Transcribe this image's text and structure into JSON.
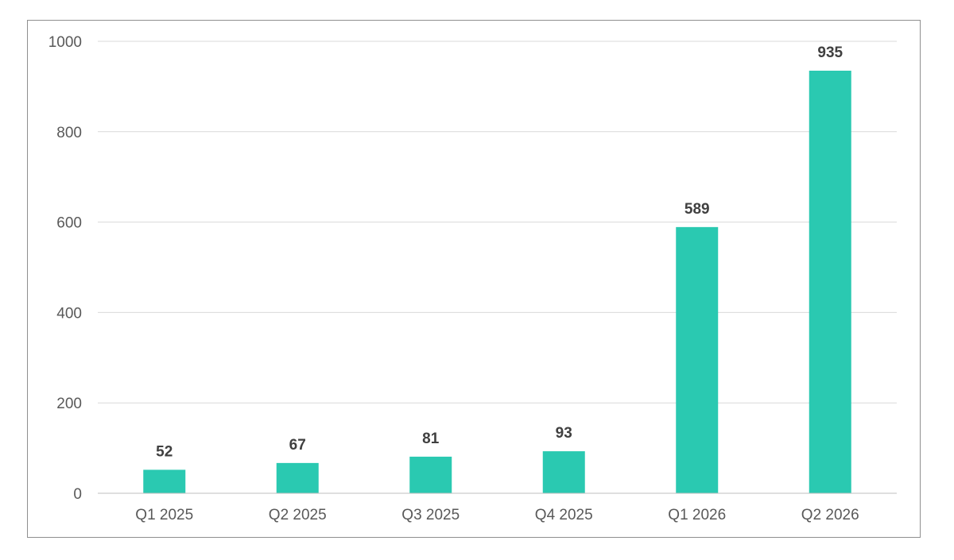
{
  "chart_data": {
    "type": "bar",
    "title": "",
    "xlabel": "",
    "ylabel": "",
    "categories": [
      "Q1 2025",
      "Q2 2025",
      "Q3 2025",
      "Q4 2025",
      "Q1 2026",
      "Q2 2026"
    ],
    "values": [
      52,
      67,
      81,
      93,
      589,
      935
    ],
    "data_labels": [
      "52",
      "67",
      "81",
      "93",
      "589",
      "935"
    ],
    "ylim": [
      0,
      1000
    ],
    "yticks": [
      0,
      200,
      400,
      600,
      800,
      1000
    ],
    "ytick_labels": [
      "0",
      "200",
      "400",
      "600",
      "800",
      "1000"
    ],
    "grid": true,
    "legend": "none",
    "bar_color": "#2ac9b1"
  }
}
